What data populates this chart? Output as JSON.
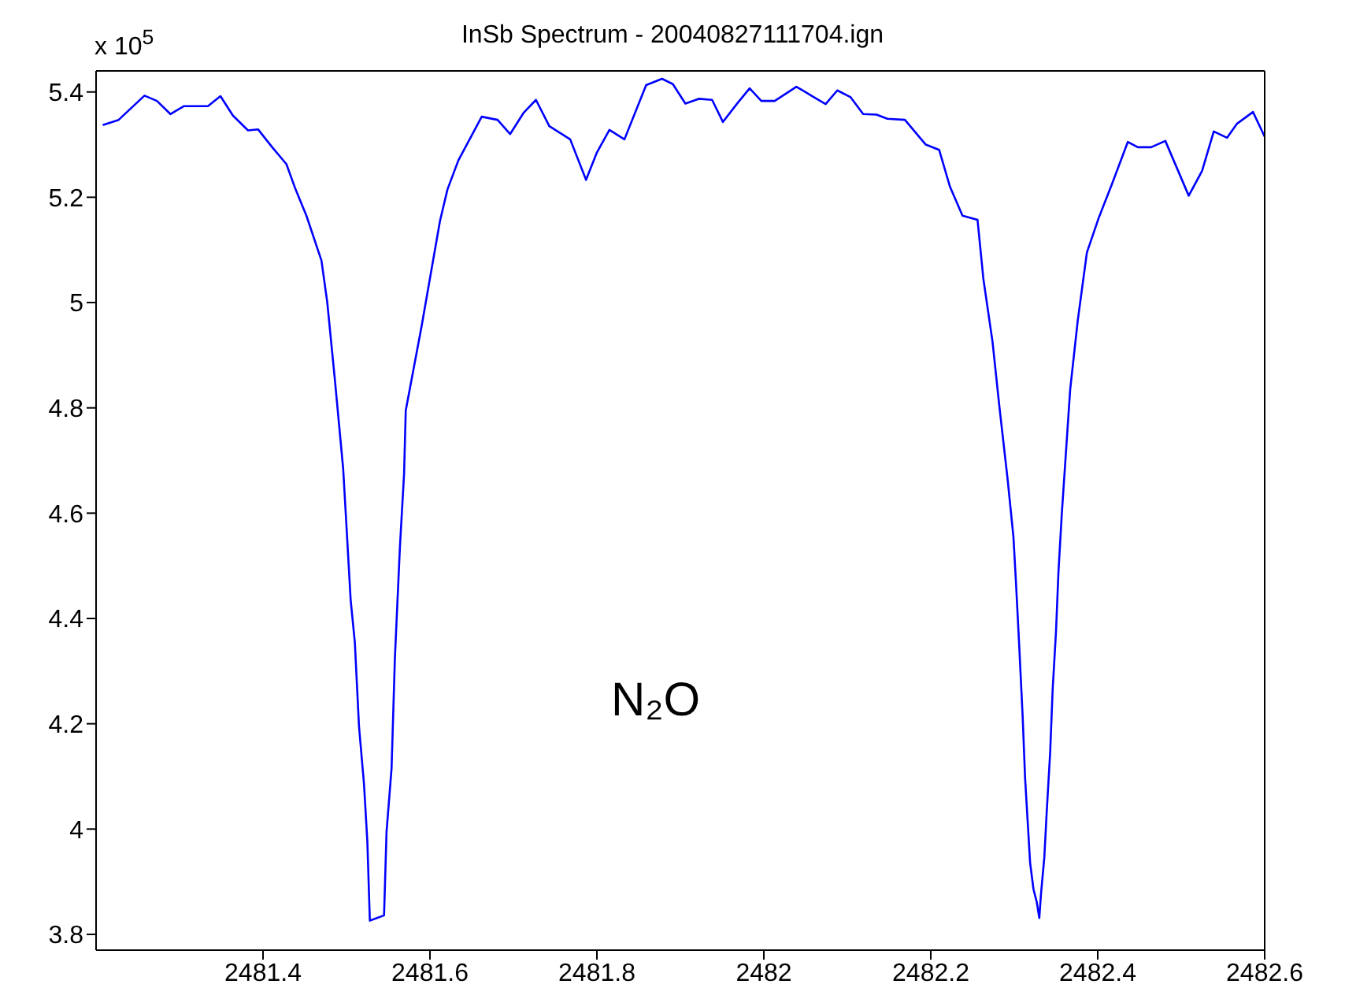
{
  "chart_data": {
    "type": "line",
    "title": "InSb Spectrum - 20040827111704.ign",
    "annotations": [
      "x 10$^{5}$",
      "N₂O"
    ],
    "xlim": [
      2481.2,
      2482.6
    ],
    "xticks": [
      2481.4,
      2481.6,
      2481.8,
      2482,
      2482.2,
      2482.4,
      2482.6
    ],
    "ylim": [
      3.77,
      5.44
    ],
    "yticks": [
      3.8,
      4,
      4.2,
      4.4,
      4.6,
      4.8,
      5,
      5.2,
      5.4
    ],
    "grid": false,
    "legend": false,
    "marker": "none",
    "line_style": "solid",
    "series": [
      {
        "color": "#0000ff",
        "x": [
          2481.208,
          2481.227,
          2481.258,
          2481.273,
          2481.289,
          2481.305,
          2481.334,
          2481.349,
          2481.364,
          2481.382,
          2481.394,
          2481.411,
          2481.428,
          2481.439,
          2481.452,
          2481.47,
          2481.477,
          2481.486,
          2481.496,
          2481.5,
          2481.505,
          2481.51,
          2481.515,
          2481.521,
          2481.525,
          2481.528,
          2481.545,
          2481.548,
          2481.554,
          2481.558,
          2481.564,
          2481.569,
          2481.571,
          2481.59,
          2481.612,
          2481.621,
          2481.634,
          2481.662,
          2481.681,
          2481.696,
          2481.712,
          2481.727,
          2481.743,
          2481.768,
          2481.787,
          2481.8,
          2481.815,
          2481.833,
          2481.859,
          2481.878,
          2481.891,
          2481.906,
          2481.922,
          2481.938,
          2481.951,
          2481.969,
          2481.983,
          2481.997,
          2482.013,
          2482.039,
          2482.06,
          2482.074,
          2482.088,
          2482.104,
          2482.119,
          2482.135,
          2482.148,
          2482.169,
          2482.194,
          2482.21,
          2482.223,
          2482.238,
          2482.256,
          2482.263,
          2482.274,
          2482.282,
          2482.292,
          2482.299,
          2482.302,
          2482.306,
          2482.31,
          2482.313,
          2482.316,
          2482.319,
          2482.323,
          2482.327,
          2482.33,
          2482.332,
          2482.336,
          2482.339,
          2482.343,
          2482.346,
          2482.35,
          2482.353,
          2482.357,
          2482.367,
          2482.376,
          2482.387,
          2482.401,
          2482.417,
          2482.436,
          2482.448,
          2482.464,
          2482.481,
          2482.495,
          2482.509,
          2482.525,
          2482.539,
          2482.555,
          2482.567,
          2482.586,
          2482.6
        ],
        "values": [
          5.337,
          5.347,
          5.393,
          5.383,
          5.358,
          5.373,
          5.373,
          5.392,
          5.355,
          5.327,
          5.329,
          5.295,
          5.263,
          5.215,
          5.165,
          5.08,
          5.0,
          4.855,
          4.685,
          4.575,
          4.435,
          4.355,
          4.195,
          4.085,
          3.976,
          3.826,
          3.836,
          3.995,
          4.115,
          4.325,
          4.535,
          4.675,
          4.795,
          4.955,
          5.155,
          5.215,
          5.27,
          5.353,
          5.347,
          5.32,
          5.36,
          5.385,
          5.335,
          5.31,
          5.233,
          5.285,
          5.328,
          5.31,
          5.413,
          5.425,
          5.415,
          5.378,
          5.387,
          5.385,
          5.343,
          5.38,
          5.407,
          5.383,
          5.383,
          5.41,
          5.39,
          5.377,
          5.403,
          5.39,
          5.358,
          5.357,
          5.349,
          5.347,
          5.3,
          5.29,
          5.22,
          5.165,
          5.157,
          5.045,
          4.925,
          4.805,
          4.665,
          4.555,
          4.47,
          4.346,
          4.216,
          4.096,
          4.016,
          3.936,
          3.886,
          3.861,
          3.831,
          3.876,
          3.946,
          4.036,
          4.145,
          4.265,
          4.375,
          4.49,
          4.6,
          4.835,
          4.965,
          5.095,
          5.16,
          5.225,
          5.305,
          5.295,
          5.295,
          5.307,
          5.255,
          5.203,
          5.25,
          5.325,
          5.313,
          5.34,
          5.362,
          5.315
        ]
      }
    ]
  }
}
